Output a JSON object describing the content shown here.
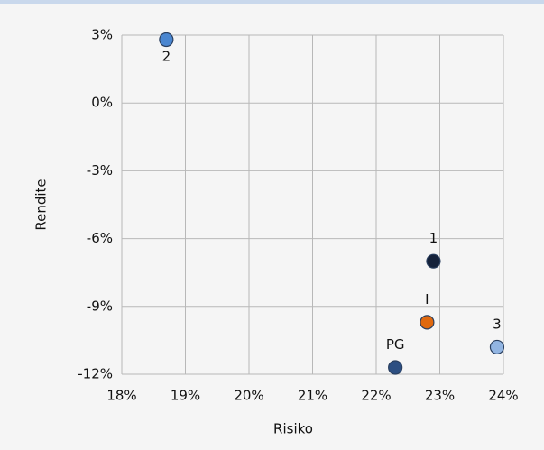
{
  "chart_data": {
    "type": "scatter",
    "xlabel": "Risiko",
    "ylabel": "Rendite",
    "xlim": [
      18,
      24
    ],
    "ylim": [
      -12,
      3
    ],
    "xticks": [
      {
        "value": 18,
        "label": "18%"
      },
      {
        "value": 19,
        "label": "19%"
      },
      {
        "value": 20,
        "label": "20%"
      },
      {
        "value": 21,
        "label": "21%"
      },
      {
        "value": 22,
        "label": "22%"
      },
      {
        "value": 23,
        "label": "23%"
      },
      {
        "value": 24,
        "label": "24%"
      }
    ],
    "yticks": [
      {
        "value": 3,
        "label": "3%"
      },
      {
        "value": 0,
        "label": "0%"
      },
      {
        "value": -3,
        "label": "-3%"
      },
      {
        "value": -6,
        "label": "-6%"
      },
      {
        "value": -9,
        "label": "-9%"
      },
      {
        "value": -12,
        "label": "-12%"
      }
    ],
    "grid": true,
    "series": [
      {
        "name": "2",
        "color": "#4a86d0",
        "x": [
          18.7
        ],
        "values": [
          2.8
        ]
      },
      {
        "name": "1",
        "color": "#14213a",
        "x": [
          22.9
        ],
        "values": [
          -7.0
        ]
      },
      {
        "name": "I",
        "color": "#e0690f",
        "x": [
          22.8
        ],
        "values": [
          -9.7
        ]
      },
      {
        "name": "3",
        "color": "#92b5e2",
        "x": [
          23.9
        ],
        "values": [
          -10.8
        ]
      },
      {
        "name": "PG",
        "color": "#2d4f82",
        "x": [
          22.3
        ],
        "values": [
          -11.7
        ]
      }
    ]
  }
}
